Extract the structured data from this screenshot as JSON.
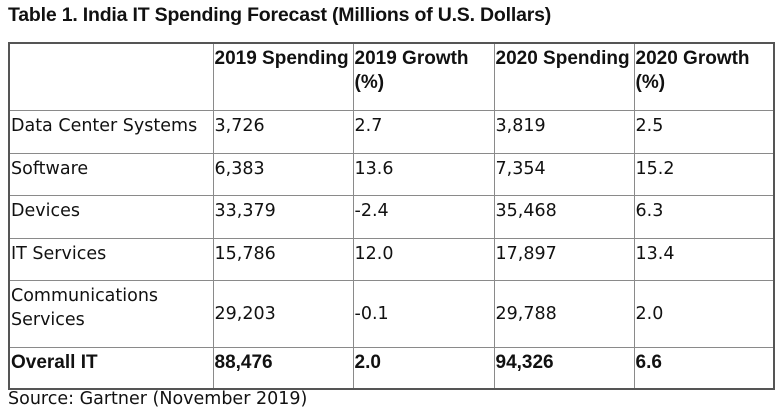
{
  "title": "Table 1. India IT Spending Forecast (Millions of U.S. Dollars)",
  "columns": [
    "",
    "2019 Spending",
    "2019 Growth (%)",
    "2020 Spending",
    "2020 Growth (%)"
  ],
  "rows": [
    {
      "segment": "Data Center Systems",
      "spend2019": "3,726",
      "growth2019": "2.7",
      "spend2020": "3,819",
      "growth2020": "2.5"
    },
    {
      "segment": "Software",
      "spend2019": "6,383",
      "growth2019": "13.6",
      "spend2020": "7,354",
      "growth2020": "15.2"
    },
    {
      "segment": "Devices",
      "spend2019": "33,379",
      "growth2019": "-2.4",
      "spend2020": "35,468",
      "growth2020": "6.3"
    },
    {
      "segment": "IT Services",
      "spend2019": "15,786",
      "growth2019": "12.0",
      "spend2020": "17,897",
      "growth2020": "13.4"
    },
    {
      "segment": "Communications Services",
      "spend2019": "29,203",
      "growth2019": "-0.1",
      "spend2020": "29,788",
      "growth2020": "2.0"
    },
    {
      "segment": "Overall IT",
      "spend2019": "88,476",
      "growth2019": "2.0",
      "spend2020": "94,326",
      "growth2020": "6.6"
    }
  ],
  "source": "Source: Gartner (November 2019)"
}
